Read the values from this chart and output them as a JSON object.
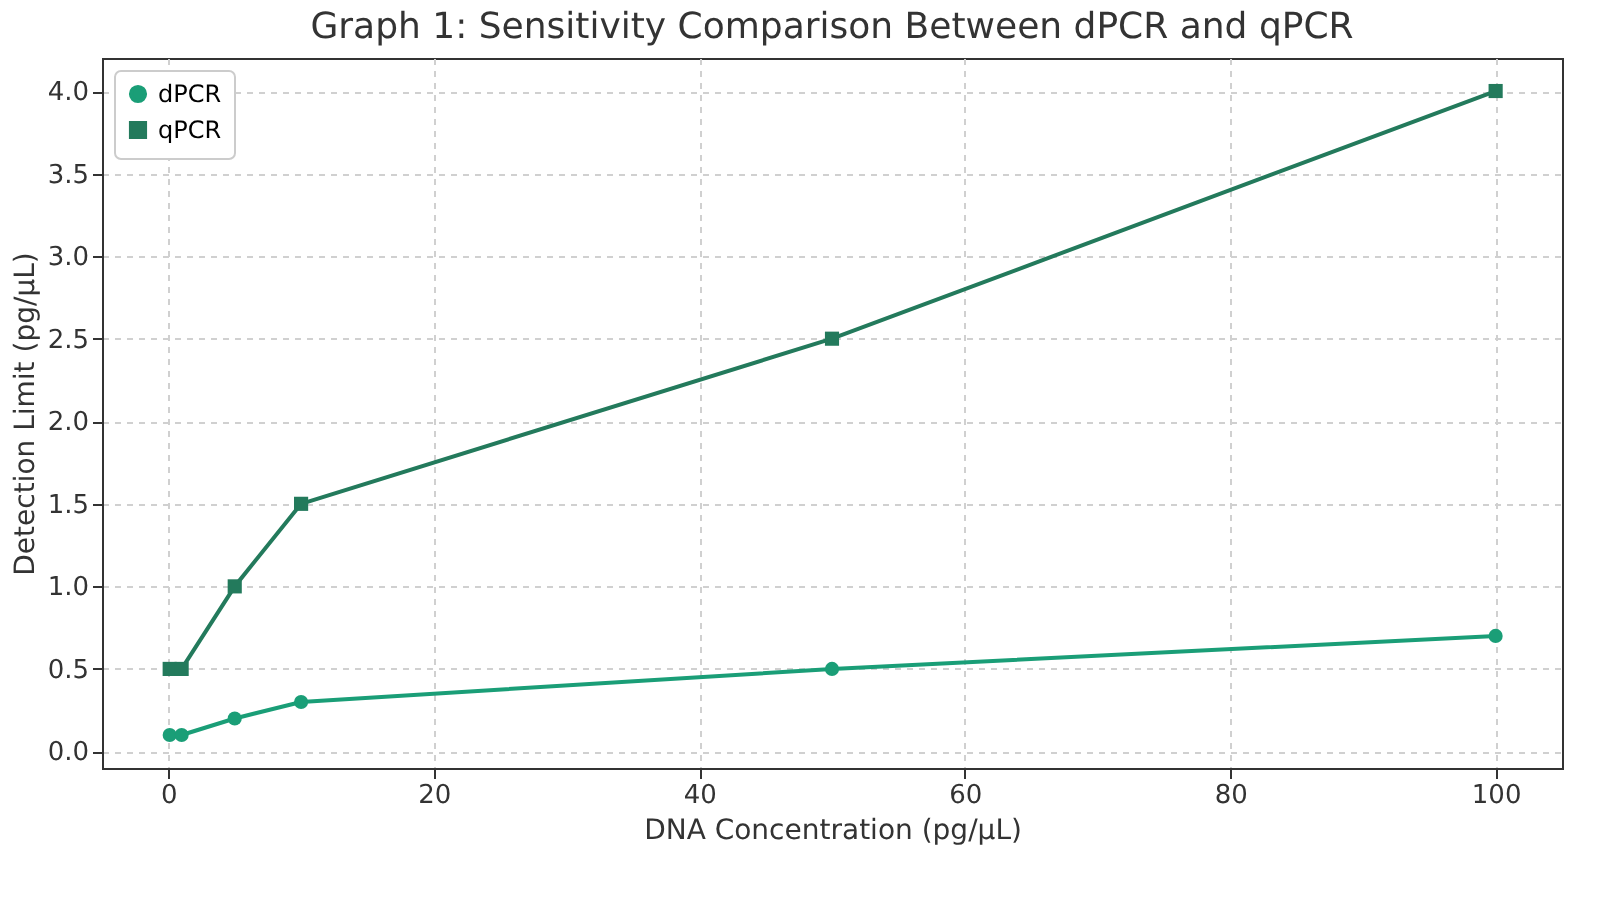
{
  "chart_data": {
    "type": "line",
    "title": "Graph 1: Sensitivity Comparison Between dPCR and qPCR",
    "xlabel": "DNA Concentration (pg/µL)",
    "ylabel": "Detection Limit (pg/µL)",
    "x": [
      0.1,
      1,
      5,
      10,
      50,
      100
    ],
    "series": [
      {
        "name": "dPCR",
        "color": "#1a9e77",
        "marker": "circle",
        "values": [
          0.1,
          0.1,
          0.2,
          0.3,
          0.5,
          0.7
        ]
      },
      {
        "name": "qPCR",
        "color": "#237a5c",
        "marker": "square",
        "values": [
          0.5,
          0.5,
          1.0,
          1.5,
          2.5,
          4.0
        ]
      }
    ],
    "xlim": [
      -5,
      105
    ],
    "xticks": [
      0,
      20,
      40,
      60,
      80,
      100
    ],
    "ylim": [
      -0.1,
      4.2
    ],
    "yticks": [
      {
        "value": 0,
        "label": "0.0"
      },
      {
        "value": 0.5,
        "label": "0.5"
      },
      {
        "value": 1,
        "label": "1.0"
      },
      {
        "value": 1.5,
        "label": "1.5"
      },
      {
        "value": 2,
        "label": "2.0"
      },
      {
        "value": 2.5,
        "label": "2.5"
      },
      {
        "value": 3,
        "label": "3.0"
      },
      {
        "value": 3.5,
        "label": "3.5"
      },
      {
        "value": 4,
        "label": "4.0"
      }
    ],
    "grid": true,
    "legend": "top left",
    "line_style": "solid"
  }
}
